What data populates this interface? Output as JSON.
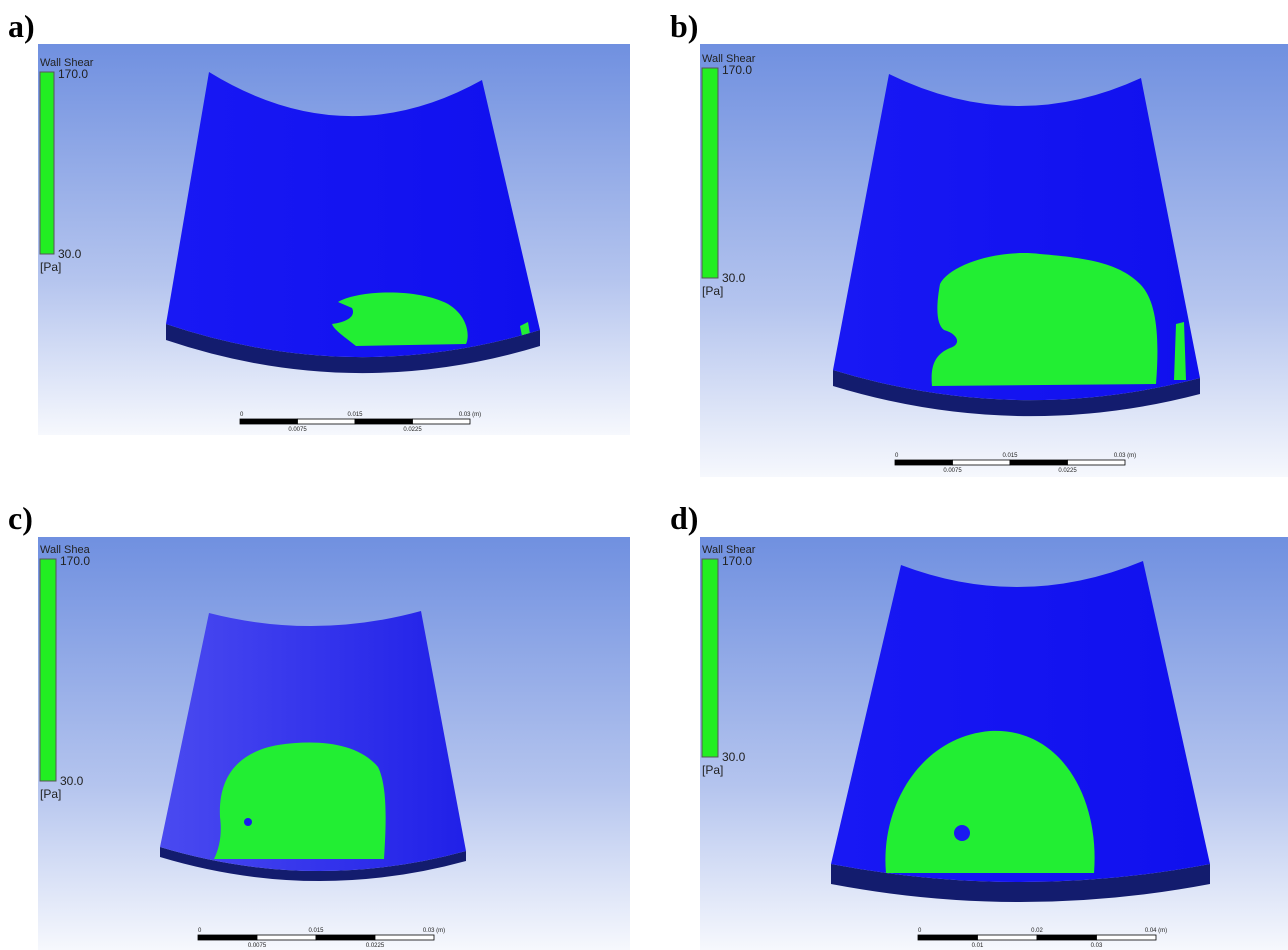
{
  "panels": [
    {
      "label": "a)",
      "legend": {
        "title": "Wall Shear",
        "max": "170.0",
        "min": "30.0",
        "unit": "[Pa]"
      },
      "scale_bar": {
        "top": [
          "0",
          "0.015",
          "0.03 (m)"
        ],
        "bottom": [
          "0.0075",
          "0.0225"
        ]
      }
    },
    {
      "label": "b)",
      "legend": {
        "title": "Wall Shear",
        "max": "170.0",
        "min": "30.0",
        "unit": "[Pa]"
      },
      "scale_bar": {
        "top": [
          "0",
          "0.015",
          "0.03 (m)"
        ],
        "bottom": [
          "0.0075",
          "0.0225"
        ]
      }
    },
    {
      "label": "c)",
      "legend": {
        "title": "Wall Shea",
        "max": "170.0",
        "min": "30.0",
        "unit": "[Pa]"
      },
      "scale_bar": {
        "top": [
          "0",
          "0.015",
          "0.03 (m)"
        ],
        "bottom": [
          "0.0075",
          "0.0225"
        ]
      }
    },
    {
      "label": "d)",
      "legend": {
        "title": "Wall Shear",
        "max": "170.0",
        "min": "30.0",
        "unit": "[Pa]"
      },
      "scale_bar": {
        "top": [
          "0",
          "0.02",
          "0.04 (m)"
        ],
        "bottom": [
          "0.01",
          "0.03"
        ]
      }
    }
  ]
}
